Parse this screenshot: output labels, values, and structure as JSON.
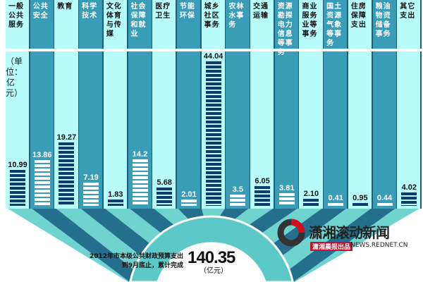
{
  "chart_data": {
    "type": "bar",
    "categories": [
      "一般公共服务",
      "公共安全",
      "教育",
      "科学技术",
      "文化体育与传媒",
      "社会保障和就业",
      "医疗卫生",
      "节能环保",
      "城乡社区事务",
      "农林水事务",
      "交通运输",
      "资源勘探电力信息等事务",
      "商业服务业等事务",
      "国土资源气象等事务",
      "住房保障支出",
      "粮油物资储备事务",
      "其它支出"
    ],
    "values": [
      10.99,
      13.86,
      19.27,
      7.19,
      1.83,
      14.2,
      5.68,
      2.01,
      44.04,
      3.5,
      6.05,
      3.81,
      2.1,
      0.41,
      0.95,
      0.44,
      4.02
    ],
    "value_labels": [
      "10.99",
      "13.86",
      "19.27",
      "7.19",
      "1.83",
      "14.2",
      "5.68",
      "2.01",
      "44.04",
      "3.5",
      "6.05",
      "3.81",
      "2.10",
      "0.41",
      "0.95",
      "0.44",
      "4.02"
    ],
    "unit_label": "（单位：亿元）",
    "ylim": [
      0,
      44.04
    ],
    "grid": false,
    "colors": {
      "dark_column": "#3a9db8",
      "light_column": "#b8fcfc",
      "bar_dark": "#0e3b6b",
      "bar_light": "#ffffff",
      "ring": "#5cc8c8"
    }
  },
  "summary": {
    "caption_line1": "2012年市本级公共财政预算支出",
    "caption_line2": "到9月底止，累计完成",
    "total": "140.35",
    "total_unit": "（亿元）"
  },
  "logo": {
    "title": "潇湘滚动新闻",
    "subtitle": "潇湘晨报出品",
    "url": "NEWS.REDNET.CN"
  }
}
